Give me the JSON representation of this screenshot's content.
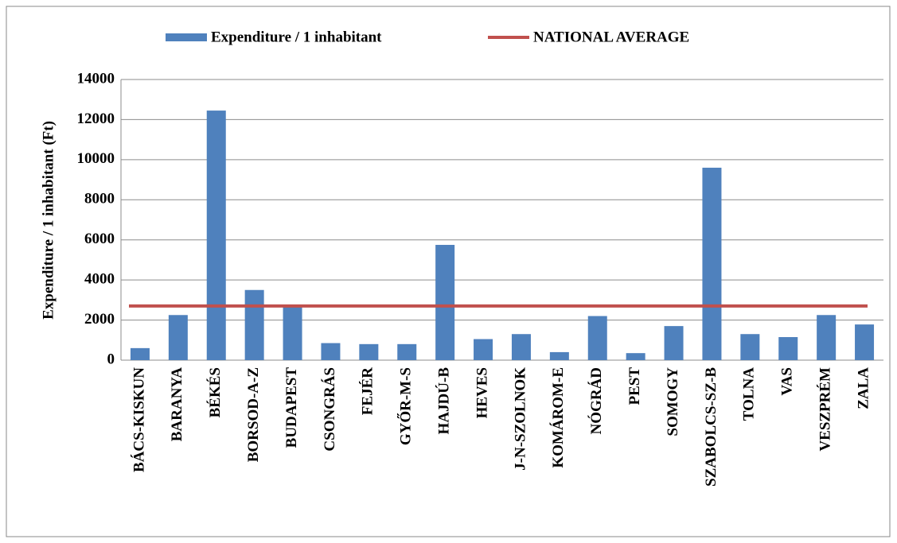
{
  "chart_data": {
    "type": "bar",
    "y_axis_label": "Expenditure / 1 inhabitant (Ft)",
    "categories": [
      "BÁCS-KISKUN",
      "BARANYA",
      "BÉKÉS",
      "BORSOD-A-Z",
      "BUDAPEST",
      "CSONGRÁS",
      "FEJÉR",
      "GYŐR-M-S",
      "HAJDÚ-B",
      "HEVES",
      "J-N-SZOLNOK",
      "KOMÁROM-E",
      "NÓGRÁD",
      "PEST",
      "SOMOGY",
      "SZABOLCS-SZ-B",
      "TOLNA",
      "VAS",
      "VESZPRÉM",
      "ZALA"
    ],
    "series": [
      {
        "name": "Expenditure / 1 inhabitant",
        "color": "#4f81bd",
        "values": [
          600,
          2250,
          12450,
          3500,
          2700,
          850,
          800,
          800,
          5750,
          1050,
          1300,
          400,
          2200,
          350,
          1700,
          9600,
          1300,
          1150,
          2250,
          1780
        ]
      }
    ],
    "reference_line": {
      "name": "NATIONAL AVERAGE",
      "color": "#c0504d",
      "value": 2700
    },
    "ylim": [
      0,
      14000
    ],
    "yticks": [
      0,
      2000,
      4000,
      6000,
      8000,
      10000,
      12000,
      14000
    ],
    "grid": true,
    "legend": "top"
  }
}
